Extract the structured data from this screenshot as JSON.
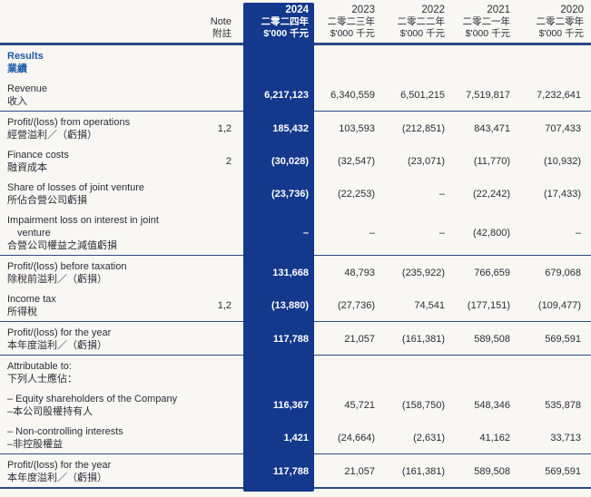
{
  "colors": {
    "background": "#f9f7f3",
    "highlight_column": "#13388c",
    "rule": "#2a4a86",
    "section_title_blue": "#1c5aa9",
    "text": "#2c2c38",
    "highlight_text": "#ffffff"
  },
  "header": {
    "note": {
      "en": "Note",
      "zh": "附註"
    },
    "columns": {
      "y2024": {
        "year": "2024",
        "zh": "二零二四年",
        "unit": "$'000 千元"
      },
      "y2023": {
        "year": "2023",
        "zh": "二零二三年",
        "unit": "$'000 千元"
      },
      "y2022": {
        "year": "2022",
        "zh": "二零二二年",
        "unit": "$'000 千元"
      },
      "y2021": {
        "year": "2021",
        "zh": "二零二一年",
        "unit": "$'000 千元"
      },
      "y2020": {
        "year": "2020",
        "zh": "二零二零年",
        "unit": "$'000 千元"
      }
    }
  },
  "rows": {
    "results": {
      "en": "Results",
      "zh": "業績"
    },
    "revenue": {
      "en": "Revenue",
      "zh": "收入",
      "note": "",
      "y2024": "6,217,123",
      "y2023": "6,340,559",
      "y2022": "6,501,215",
      "y2021": "7,519,817",
      "y2020": "7,232,641"
    },
    "profit_from_operations": {
      "en": "Profit/(loss) from operations",
      "zh": "經營溢利／（虧損）",
      "note": "1,2",
      "y2024": "185,432",
      "y2023": "103,593",
      "y2022": "(212,851)",
      "y2021": "843,471",
      "y2020": "707,433"
    },
    "finance_costs": {
      "en": "Finance costs",
      "zh": "融資成本",
      "note": "2",
      "y2024": "(30,028)",
      "y2023": "(32,547)",
      "y2022": "(23,071)",
      "y2021": "(11,770)",
      "y2020": "(10,932)"
    },
    "share_of_losses_jv": {
      "en": "Share of losses of joint venture",
      "zh": "所佔合營公司虧損",
      "note": "",
      "y2024": "(23,736)",
      "y2023": "(22,253)",
      "y2022": "–",
      "y2021": "(22,242)",
      "y2020": "(17,433)"
    },
    "impairment_loss_jv": {
      "en_line1": "Impairment loss on interest in joint",
      "en_line2": "venture",
      "zh": "合營公司權益之減值虧損",
      "note": "",
      "y2024": "–",
      "y2023": "–",
      "y2022": "–",
      "y2021": "(42,800)",
      "y2020": "–"
    },
    "profit_before_taxation": {
      "en": "Profit/(loss) before taxation",
      "zh": "除稅前溢利／（虧損）",
      "note": "",
      "y2024": "131,668",
      "y2023": "48,793",
      "y2022": "(235,922)",
      "y2021": "766,659",
      "y2020": "679,068"
    },
    "income_tax": {
      "en": "Income tax",
      "zh": "所得稅",
      "note": "1,2",
      "y2024": "(13,880)",
      "y2023": "(27,736)",
      "y2022": "74,541",
      "y2021": "(177,151)",
      "y2020": "(109,477)"
    },
    "profit_for_the_year": {
      "en": "Profit/(loss) for the year",
      "zh": "本年度溢利／（虧損）",
      "note": "",
      "y2024": "117,788",
      "y2023": "21,057",
      "y2022": "(161,381)",
      "y2021": "589,508",
      "y2020": "569,591"
    },
    "attributable_to": {
      "en": "Attributable to:",
      "zh": "下列人士應佔："
    },
    "equity_shareholders": {
      "en": "– Equity shareholders of the Company",
      "zh": "–本公司股權持有人",
      "note": "",
      "y2024": "116,367",
      "y2023": "45,721",
      "y2022": "(158,750)",
      "y2021": "548,346",
      "y2020": "535,878"
    },
    "non_controlling_interests": {
      "en": "– Non-controlling interests",
      "zh": "–非控股權益",
      "note": "",
      "y2024": "1,421",
      "y2023": "(24,664)",
      "y2022": "(2,631)",
      "y2021": "41,162",
      "y2020": "33,713"
    },
    "profit_for_the_year_total": {
      "en": "Profit/(loss) for the year",
      "zh": "本年度溢利／（虧損）",
      "note": "",
      "y2024": "117,788",
      "y2023": "21,057",
      "y2022": "(161,381)",
      "y2021": "589,508",
      "y2020": "569,591"
    }
  }
}
